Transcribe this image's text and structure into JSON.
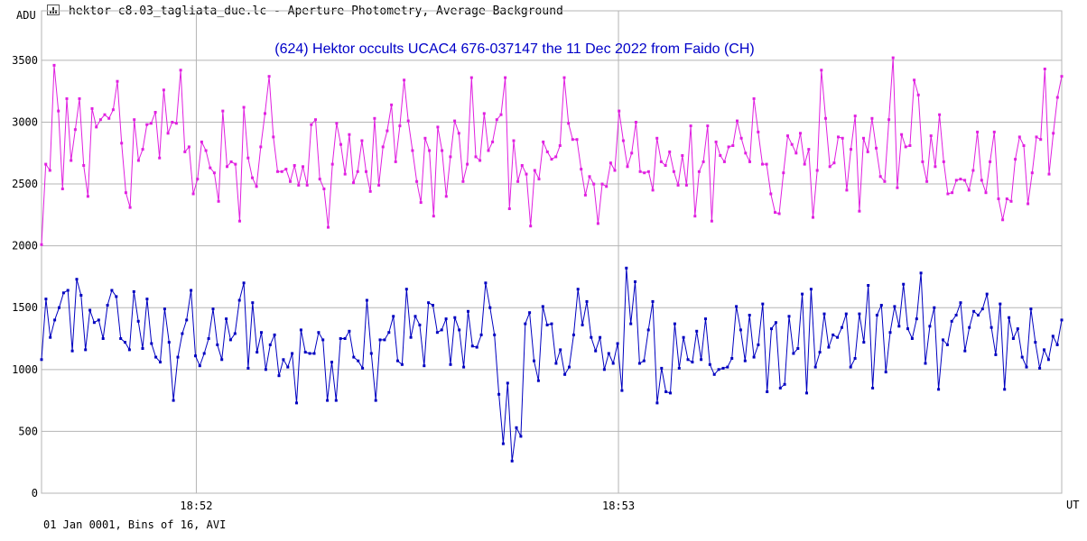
{
  "window": {
    "title": "hektor c8.03_tagliata_due.lc - Aperture Photometry, Average Background",
    "icon": "chart-window-icon"
  },
  "footer": {
    "info": "01 Jan 0001, Bins of 16, AVI"
  },
  "colors": {
    "target": "#e020e0",
    "comparison": "#0000c0",
    "grid": "#b4b4b4",
    "title": "#0000c8"
  },
  "chart_data": {
    "type": "line",
    "title": "(624) Hektor occults UCAC4 676-037147 the 11 Dec 2022 from Faido (CH)",
    "ylabel": "ADU",
    "xlabel": "UT",
    "ylim": [
      0,
      3900
    ],
    "xlim": [
      0,
      290
    ],
    "yticks": [
      0,
      500,
      1000,
      1500,
      2000,
      2500,
      3000,
      3500
    ],
    "xticks": [
      {
        "label": "18:52",
        "x": 44
      },
      {
        "label": "18:53",
        "x": 164
      }
    ],
    "grid": true,
    "series": [
      {
        "key": "target",
        "values": [
          2010,
          2660,
          2610,
          3460,
          3090,
          2460,
          3190,
          2690,
          2940,
          3190,
          2650,
          2400,
          3110,
          2960,
          3020,
          3060,
          3030,
          3100,
          3330,
          2830,
          2430,
          2310,
          3020,
          2690,
          2780,
          2980,
          2990,
          3080,
          2710,
          3260,
          2910,
          3000,
          2990,
          3420,
          2760,
          2800,
          2420,
          2540,
          2840,
          2770,
          2630,
          2590,
          2360,
          3090,
          2640,
          2680,
          2660,
          2200,
          3120,
          2710,
          2550,
          2480,
          2800,
          3070,
          3370,
          2880,
          2600,
          2600,
          2620,
          2520,
          2650,
          2490,
          2640,
          2490,
          2980,
          3020,
          2540,
          2460,
          2150,
          2660,
          2990,
          2820,
          2580,
          2900,
          2510,
          2600,
          2850,
          2600,
          2440,
          3030,
          2490,
          2800,
          2930,
          3140,
          2680,
          2970,
          3340,
          3010,
          2770,
          2520,
          2350,
          2870,
          2770,
          2240,
          2960,
          2770,
          2400,
          2720,
          3010,
          2910,
          2520,
          2660,
          3360,
          2720,
          2690,
          3070,
          2770,
          2840,
          3020,
          3060,
          3360,
          2300,
          2850,
          2520,
          2650,
          2580,
          2160,
          2610,
          2540,
          2840,
          2760,
          2700,
          2720,
          2810,
          3360,
          2990,
          2860,
          2860,
          2620,
          2410,
          2560,
          2500,
          2180,
          2500,
          2480,
          2670,
          2610,
          3090,
          2850,
          2640,
          2750,
          3000,
          2600,
          2590,
          2600,
          2450,
          2870,
          2680,
          2650,
          2760,
          2600,
          2490,
          2730,
          2490,
          2970,
          2240,
          2600,
          2680,
          2970,
          2200,
          2840,
          2730,
          2680,
          2800,
          2810,
          3010,
          2870,
          2750,
          2680,
          3190,
          2920,
          2660,
          2660,
          2420,
          2270,
          2260,
          2590,
          2890,
          2820,
          2750,
          2910,
          2660,
          2780,
          2230,
          2610,
          3420,
          3030,
          2640,
          2670,
          2880,
          2870,
          2450,
          2780,
          3050,
          2280,
          2870,
          2760,
          3030,
          2790,
          2560,
          2520,
          3020,
          3520,
          2470,
          2900,
          2800,
          2810,
          3340,
          3220,
          2680,
          2520,
          2890,
          2640,
          3060,
          2680,
          2420,
          2430,
          2530,
          2540,
          2530,
          2450,
          2610,
          2920,
          2530,
          2430,
          2680,
          2920,
          2380,
          2210,
          2380,
          2360,
          2700,
          2880,
          2810,
          2340,
          2590,
          2880,
          2860,
          3430,
          2580,
          2910,
          3200,
          3370
        ]
      },
      {
        "key": "comparison",
        "values": [
          1080,
          1570,
          1260,
          1400,
          1500,
          1620,
          1640,
          1150,
          1730,
          1600,
          1160,
          1480,
          1380,
          1400,
          1250,
          1520,
          1640,
          1590,
          1250,
          1220,
          1160,
          1630,
          1390,
          1170,
          1570,
          1210,
          1100,
          1060,
          1490,
          1220,
          750,
          1100,
          1290,
          1400,
          1640,
          1110,
          1030,
          1130,
          1250,
          1490,
          1200,
          1080,
          1410,
          1240,
          1290,
          1560,
          1700,
          1010,
          1540,
          1140,
          1300,
          1000,
          1200,
          1280,
          950,
          1080,
          1020,
          1130,
          730,
          1320,
          1140,
          1130,
          1130,
          1300,
          1240,
          750,
          1060,
          750,
          1250,
          1250,
          1310,
          1100,
          1070,
          1010,
          1560,
          1130,
          750,
          1240,
          1240,
          1300,
          1430,
          1070,
          1040,
          1650,
          1260,
          1430,
          1360,
          1030,
          1540,
          1520,
          1300,
          1320,
          1410,
          1040,
          1420,
          1320,
          1020,
          1470,
          1190,
          1180,
          1280,
          1700,
          1500,
          1280,
          800,
          400,
          890,
          260,
          530,
          460,
          1370,
          1460,
          1070,
          910,
          1510,
          1360,
          1370,
          1050,
          1160,
          960,
          1020,
          1280,
          1650,
          1360,
          1550,
          1260,
          1150,
          1260,
          1000,
          1130,
          1050,
          1210,
          830,
          1820,
          1370,
          1710,
          1050,
          1070,
          1320,
          1550,
          730,
          1010,
          820,
          810,
          1370,
          1010,
          1260,
          1080,
          1060,
          1310,
          1080,
          1410,
          1040,
          960,
          1000,
          1010,
          1020,
          1090,
          1510,
          1320,
          1070,
          1440,
          1100,
          1200,
          1530,
          820,
          1330,
          1380,
          850,
          880,
          1430,
          1130,
          1170,
          1610,
          810,
          1650,
          1020,
          1140,
          1450,
          1180,
          1280,
          1260,
          1340,
          1450,
          1020,
          1090,
          1450,
          1220,
          1680,
          850,
          1440,
          1520,
          980,
          1300,
          1510,
          1350,
          1690,
          1330,
          1250,
          1410,
          1780,
          1050,
          1350,
          1500,
          840,
          1240,
          1200,
          1390,
          1440,
          1540,
          1150,
          1340,
          1470,
          1440,
          1490,
          1610,
          1340,
          1120,
          1530,
          840,
          1420,
          1250,
          1330,
          1100,
          1020,
          1490,
          1220,
          1010,
          1160,
          1080,
          1270,
          1200,
          1400
        ]
      }
    ]
  }
}
